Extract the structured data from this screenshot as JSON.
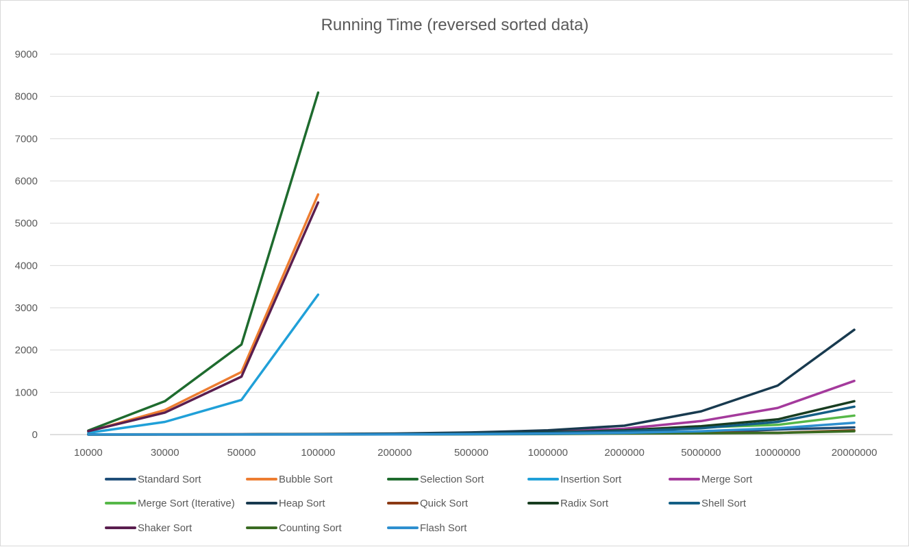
{
  "chart_data": {
    "type": "line",
    "title": "Running Time (reversed sorted data)",
    "xlabel": "",
    "ylabel": "",
    "categories": [
      "10000",
      "30000",
      "50000",
      "100000",
      "200000",
      "500000",
      "1000000",
      "2000000",
      "5000000",
      "10000000",
      "20000000"
    ],
    "ylim": [
      0,
      9000
    ],
    "yticks": [
      "0",
      "1000",
      "2000",
      "3000",
      "4000",
      "5000",
      "6000",
      "7000",
      "8000",
      "9000"
    ],
    "grid": true,
    "legend_position": "bottom",
    "series": [
      {
        "name": "Standard Sort",
        "color": "#1f4e79",
        "values": [
          1,
          2,
          3,
          5,
          10,
          25,
          50,
          100,
          50,
          120,
          170
        ]
      },
      {
        "name": "Bubble Sort",
        "color": "#ed7d31",
        "values": [
          70,
          580,
          1480,
          5680,
          null,
          null,
          null,
          null,
          null,
          null,
          null
        ]
      },
      {
        "name": "Selection Sort",
        "color": "#1e6b2e",
        "values": [
          95,
          790,
          2130,
          8090,
          null,
          null,
          null,
          null,
          null,
          null,
          null
        ]
      },
      {
        "name": "Insertion Sort",
        "color": "#20a0d8",
        "values": [
          40,
          300,
          820,
          3310,
          null,
          null,
          null,
          null,
          null,
          null,
          null
        ]
      },
      {
        "name": "Merge Sort",
        "color": "#a43a9c",
        "values": [
          2,
          4,
          6,
          10,
          15,
          30,
          65,
          140,
          320,
          630,
          1270
        ]
      },
      {
        "name": "Merge Sort (Iterative)",
        "color": "#56b848",
        "values": [
          1,
          3,
          5,
          8,
          12,
          25,
          50,
          100,
          170,
          230,
          450
        ]
      },
      {
        "name": "Heap Sort",
        "color": "#183a4f",
        "values": [
          3,
          6,
          8,
          15,
          25,
          50,
          100,
          210,
          550,
          1160,
          2480
        ]
      },
      {
        "name": "Quick Sort",
        "color": "#8b3a14",
        "values": [
          1,
          2,
          3,
          5,
          8,
          15,
          30,
          60,
          50,
          40,
          100
        ]
      },
      {
        "name": "Radix Sort",
        "color": "#183d20",
        "values": [
          2,
          4,
          5,
          8,
          12,
          25,
          50,
          100,
          200,
          360,
          790
        ]
      },
      {
        "name": "Shell Sort",
        "color": "#145f85",
        "values": [
          2,
          3,
          4,
          6,
          10,
          20,
          40,
          80,
          150,
          300,
          660
        ]
      },
      {
        "name": "Shaker Sort",
        "color": "#5a1e4f",
        "values": [
          80,
          520,
          1370,
          5490,
          null,
          null,
          null,
          null,
          null,
          null,
          null
        ]
      },
      {
        "name": "Counting Sort",
        "color": "#3a6b22",
        "values": [
          1,
          1,
          2,
          2,
          3,
          6,
          12,
          24,
          30,
          40,
          80
        ]
      },
      {
        "name": "Flash Sort",
        "color": "#2e8fcf",
        "values": [
          1,
          2,
          2,
          3,
          5,
          10,
          20,
          40,
          80,
          150,
          280
        ]
      }
    ]
  }
}
